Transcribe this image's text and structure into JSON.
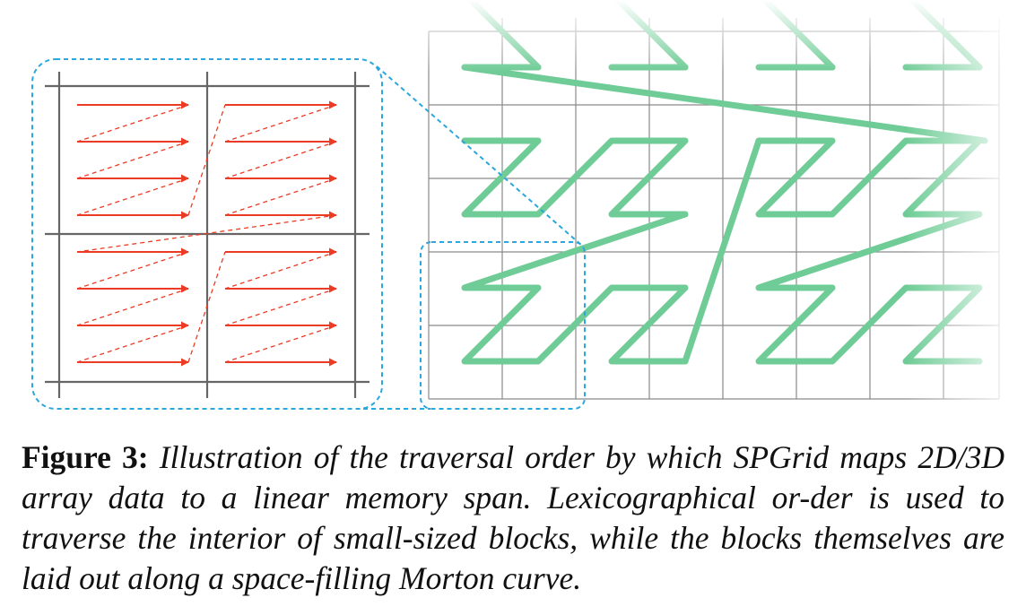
{
  "caption": {
    "label": "Figure 3:",
    "text": "Illustration of the traversal order by which SPGrid maps 2D/3D array data to a linear memory span. Lexicographical or-der is used to traverse the interior of small-sized blocks, while the blocks themselves are laid out along a space-filling Morton curve."
  },
  "colors": {
    "lexicographic_arrow": "#ec3b24",
    "morton_curve": "#6fcc96",
    "zoom_outline": "#2aa7dc",
    "grid_fine": "#8a8a8a",
    "grid_block": "#666666"
  }
}
